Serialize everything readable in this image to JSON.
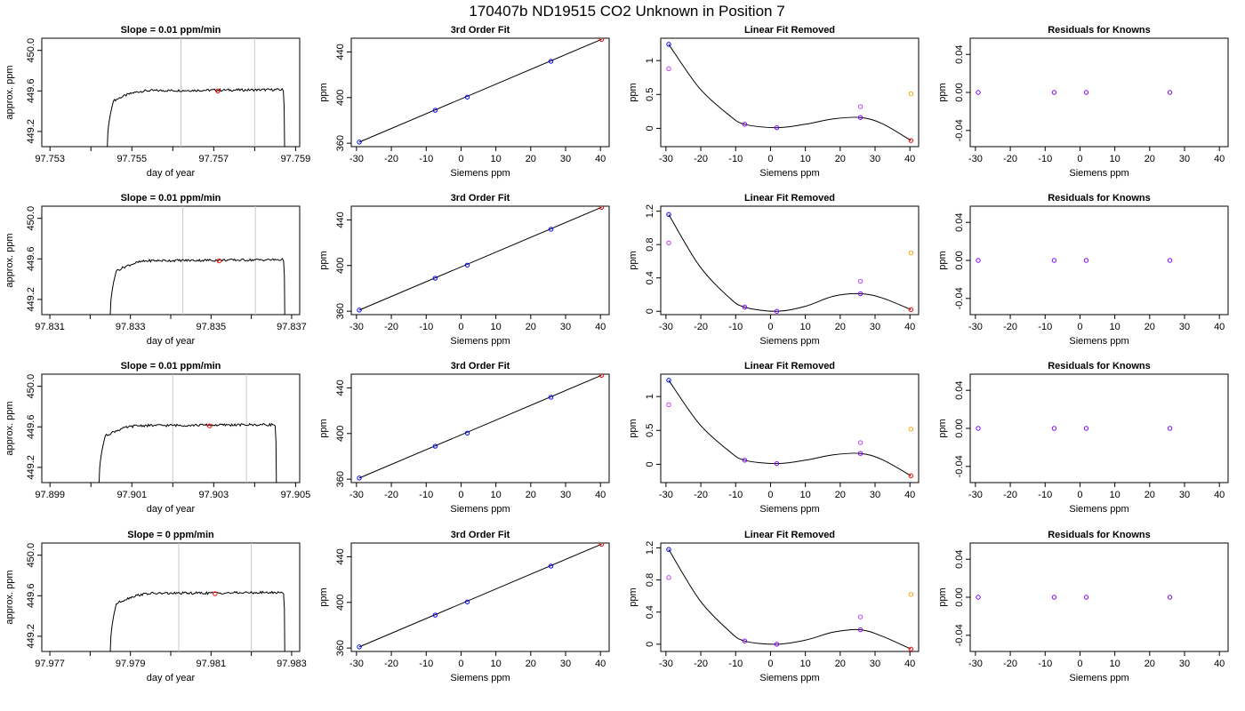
{
  "page": {
    "title": "170407b     ND19515   CO2 Unknown in Position  7"
  },
  "colors": {
    "trace": "#000000",
    "window_line": "#c8c8c8",
    "marker_red": "#ff0000",
    "point_blue": "#0000ff",
    "point_magenta": "#c040ff",
    "point_purple": "#8000ff",
    "point_orange": "#ffa500"
  },
  "chart_data": [
    {
      "type": "line",
      "title": "Slope =  0.01  ppm/min",
      "xlabel": "day of year",
      "ylabel": "approx. ppm",
      "xlim": [
        97.7528,
        97.7591
      ],
      "ylim": [
        449.05,
        450.12
      ],
      "xticks": [
        97.753,
        97.754,
        97.755,
        97.756,
        97.757,
        97.758,
        97.759
      ],
      "xtick_labels": [
        "97.753",
        "97.755",
        "97.757",
        "97.759"
      ],
      "yticks": [
        449.2,
        449.6,
        450.0
      ],
      "ytick_labels": [
        "449.2",
        "449.6",
        "450.0"
      ],
      "trace": {
        "x_start": 97.7544,
        "x_end": 97.7587,
        "level": 449.6,
        "drop": 449.05
      },
      "window_lines": [
        97.7562,
        97.758
      ],
      "marker": {
        "x": 97.7571,
        "y": 449.6
      }
    },
    {
      "type": "line",
      "title": "3rd Order Fit",
      "xlabel": "Siemens ppm",
      "ylabel": "ppm",
      "xlim": [
        -31.5,
        42.5
      ],
      "ylim": [
        357,
        452
      ],
      "xticks": [
        -30,
        -20,
        -10,
        0,
        10,
        20,
        30,
        40
      ],
      "yticks": [
        360,
        400,
        440
      ],
      "fit_line": [
        [
          -29.2,
          361.0
        ],
        [
          40.3,
          451.0
        ]
      ],
      "points": [
        {
          "x": -29.2,
          "y": 361.0,
          "color": "blue"
        },
        {
          "x": -7.4,
          "y": 388.9,
          "color": "blue"
        },
        {
          "x": 1.8,
          "y": 400.4,
          "color": "blue"
        },
        {
          "x": 25.8,
          "y": 431.8,
          "color": "blue"
        },
        {
          "x": 40.3,
          "y": 451.0,
          "color": "red"
        }
      ]
    },
    {
      "type": "line",
      "title": "Linear Fit Removed",
      "xlabel": "Siemens ppm",
      "ylabel": "ppm",
      "xlim": [
        -31.5,
        42.5
      ],
      "ylim": [
        -0.27,
        1.33
      ],
      "xticks": [
        -30,
        -20,
        -10,
        0,
        10,
        20,
        30,
        40
      ],
      "yticks": [
        0.0,
        0.5,
        1.0
      ],
      "curve": [
        [
          -29.2,
          1.24
        ],
        [
          -20.5,
          0.6
        ],
        [
          -12,
          0.2
        ],
        [
          -7.4,
          0.06
        ],
        [
          1.8,
          0.01
        ],
        [
          10,
          0.06
        ],
        [
          18,
          0.14
        ],
        [
          25.8,
          0.16
        ],
        [
          32,
          0.07
        ],
        [
          40.3,
          -0.18
        ]
      ],
      "points": [
        {
          "x": -29.2,
          "y": 1.24,
          "color": "blue"
        },
        {
          "x": -29.2,
          "y": 0.88,
          "color": "magenta"
        },
        {
          "x": -7.4,
          "y": 0.06,
          "color": "purple"
        },
        {
          "x": 1.8,
          "y": 0.01,
          "color": "purple"
        },
        {
          "x": 25.8,
          "y": 0.16,
          "color": "purple"
        },
        {
          "x": 25.8,
          "y": 0.32,
          "color": "magenta"
        },
        {
          "x": 40.3,
          "y": 0.51,
          "color": "orange"
        },
        {
          "x": 40.3,
          "y": -0.18,
          "color": "red"
        }
      ]
    },
    {
      "type": "scatter",
      "title": "Residuals for Knowns",
      "xlabel": "Siemens ppm",
      "ylabel": "ppm",
      "xlim": [
        -31.5,
        42.5
      ],
      "ylim": [
        -0.057,
        0.057
      ],
      "xticks": [
        -30,
        -20,
        -10,
        0,
        10,
        20,
        30,
        40
      ],
      "yticks": [
        -0.04,
        0.0,
        0.04
      ],
      "ytick_labels": [
        "-0.04",
        "0.00",
        "0.04"
      ],
      "points": [
        {
          "x": -29.2,
          "y": 0
        },
        {
          "x": -7.4,
          "y": 0
        },
        {
          "x": 1.8,
          "y": 0
        },
        {
          "x": 25.8,
          "y": 0
        }
      ]
    },
    {
      "type": "line",
      "title": "Slope =  0.01  ppm/min",
      "xlabel": "day of year",
      "ylabel": "approx. ppm",
      "xlim": [
        97.8308,
        97.8372
      ],
      "ylim": [
        449.05,
        450.12
      ],
      "xticks": [
        97.831,
        97.832,
        97.833,
        97.834,
        97.835,
        97.836,
        97.837
      ],
      "xtick_labels": [
        "97.831",
        "97.833",
        "97.835",
        "97.837"
      ],
      "yticks": [
        449.2,
        449.6,
        450.0
      ],
      "ytick_labels": [
        "449.2",
        "449.6",
        "450.0"
      ],
      "trace": {
        "x_start": 97.8325,
        "x_end": 97.8368,
        "level": 449.58,
        "drop": 449.05
      },
      "window_lines": [
        97.8343,
        97.8361
      ],
      "marker": {
        "x": 97.8352,
        "y": 449.58
      }
    },
    {
      "type": "line",
      "title": "3rd Order Fit",
      "xlabel": "Siemens ppm",
      "ylabel": "ppm",
      "xlim": [
        -31.5,
        42.5
      ],
      "ylim": [
        357,
        452
      ],
      "xticks": [
        -30,
        -20,
        -10,
        0,
        10,
        20,
        30,
        40
      ],
      "yticks": [
        360,
        400,
        440
      ],
      "fit_line": [
        [
          -29.2,
          361.0
        ],
        [
          40.3,
          451.0
        ]
      ],
      "points": [
        {
          "x": -29.2,
          "y": 361.0,
          "color": "blue"
        },
        {
          "x": -7.4,
          "y": 388.9,
          "color": "blue"
        },
        {
          "x": 1.8,
          "y": 400.4,
          "color": "blue"
        },
        {
          "x": 25.8,
          "y": 431.8,
          "color": "blue"
        },
        {
          "x": 40.3,
          "y": 451.0,
          "color": "red"
        }
      ]
    },
    {
      "type": "line",
      "title": "Linear Fit Removed",
      "xlabel": "Siemens ppm",
      "ylabel": "ppm",
      "xlim": [
        -31.5,
        42.5
      ],
      "ylim": [
        -0.04,
        1.26
      ],
      "xticks": [
        -30,
        -20,
        -10,
        0,
        10,
        20,
        30,
        40
      ],
      "yticks": [
        0.0,
        0.4,
        0.8,
        1.2
      ],
      "curve": [
        [
          -29.2,
          1.16
        ],
        [
          -20.5,
          0.55
        ],
        [
          -12,
          0.17
        ],
        [
          -7.4,
          0.05
        ],
        [
          1.8,
          0.0
        ],
        [
          10,
          0.06
        ],
        [
          18,
          0.18
        ],
        [
          25.8,
          0.21
        ],
        [
          32,
          0.16
        ],
        [
          40.3,
          0.02
        ]
      ],
      "points": [
        {
          "x": -29.2,
          "y": 1.16,
          "color": "blue"
        },
        {
          "x": -29.2,
          "y": 0.82,
          "color": "magenta"
        },
        {
          "x": -7.4,
          "y": 0.05,
          "color": "purple"
        },
        {
          "x": 1.8,
          "y": 0.0,
          "color": "purple"
        },
        {
          "x": 25.8,
          "y": 0.21,
          "color": "purple"
        },
        {
          "x": 25.8,
          "y": 0.36,
          "color": "magenta"
        },
        {
          "x": 40.3,
          "y": 0.7,
          "color": "orange"
        },
        {
          "x": 40.3,
          "y": 0.02,
          "color": "red"
        }
      ]
    },
    {
      "type": "scatter",
      "title": "Residuals for Knowns",
      "xlabel": "Siemens ppm",
      "ylabel": "ppm",
      "xlim": [
        -31.5,
        42.5
      ],
      "ylim": [
        -0.057,
        0.057
      ],
      "xticks": [
        -30,
        -20,
        -10,
        0,
        10,
        20,
        30,
        40
      ],
      "yticks": [
        -0.04,
        0.0,
        0.04
      ],
      "ytick_labels": [
        "-0.04",
        "0.00",
        "0.04"
      ],
      "points": [
        {
          "x": -29.2,
          "y": 0
        },
        {
          "x": -7.4,
          "y": 0
        },
        {
          "x": 1.8,
          "y": 0
        },
        {
          "x": 25.8,
          "y": 0
        }
      ]
    },
    {
      "type": "line",
      "title": "Slope =  0.01  ppm/min",
      "xlabel": "day of year",
      "ylabel": "approx. ppm",
      "xlim": [
        97.8988,
        97.9051
      ],
      "ylim": [
        449.05,
        450.12
      ],
      "xticks": [
        97.899,
        97.9,
        97.901,
        97.902,
        97.903,
        97.904,
        97.905
      ],
      "xtick_labels": [
        "97.899",
        "97.901",
        "97.903",
        "97.905"
      ],
      "yticks": [
        449.2,
        449.6,
        450.0
      ],
      "ytick_labels": [
        "449.2",
        "449.6",
        "450.0"
      ],
      "trace": {
        "x_start": 97.9002,
        "x_end": 97.9045,
        "level": 449.61,
        "drop": 449.05
      },
      "window_lines": [
        97.902,
        97.9038
      ],
      "marker": {
        "x": 97.9029,
        "y": 449.61
      }
    },
    {
      "type": "line",
      "title": "3rd Order Fit",
      "xlabel": "Siemens ppm",
      "ylabel": "ppm",
      "xlim": [
        -31.5,
        42.5
      ],
      "ylim": [
        357,
        452
      ],
      "xticks": [
        -30,
        -20,
        -10,
        0,
        10,
        20,
        30,
        40
      ],
      "yticks": [
        360,
        400,
        440
      ],
      "fit_line": [
        [
          -29.2,
          361.0
        ],
        [
          40.3,
          451.0
        ]
      ],
      "points": [
        {
          "x": -29.2,
          "y": 361.0,
          "color": "blue"
        },
        {
          "x": -7.4,
          "y": 388.9,
          "color": "blue"
        },
        {
          "x": 1.8,
          "y": 400.4,
          "color": "blue"
        },
        {
          "x": 25.8,
          "y": 431.8,
          "color": "blue"
        },
        {
          "x": 40.3,
          "y": 451.0,
          "color": "red"
        }
      ]
    },
    {
      "type": "line",
      "title": "Linear Fit Removed",
      "xlabel": "Siemens ppm",
      "ylabel": "ppm",
      "xlim": [
        -31.5,
        42.5
      ],
      "ylim": [
        -0.27,
        1.33
      ],
      "xticks": [
        -30,
        -20,
        -10,
        0,
        10,
        20,
        30,
        40
      ],
      "yticks": [
        0.0,
        0.5,
        1.0
      ],
      "curve": [
        [
          -29.2,
          1.24
        ],
        [
          -20.5,
          0.6
        ],
        [
          -12,
          0.2
        ],
        [
          -7.4,
          0.06
        ],
        [
          1.8,
          0.01
        ],
        [
          10,
          0.06
        ],
        [
          18,
          0.14
        ],
        [
          25.8,
          0.16
        ],
        [
          32,
          0.07
        ],
        [
          40.3,
          -0.17
        ]
      ],
      "points": [
        {
          "x": -29.2,
          "y": 1.24,
          "color": "blue"
        },
        {
          "x": -29.2,
          "y": 0.88,
          "color": "magenta"
        },
        {
          "x": -7.4,
          "y": 0.06,
          "color": "purple"
        },
        {
          "x": 1.8,
          "y": 0.01,
          "color": "purple"
        },
        {
          "x": 25.8,
          "y": 0.16,
          "color": "purple"
        },
        {
          "x": 25.8,
          "y": 0.32,
          "color": "magenta"
        },
        {
          "x": 40.3,
          "y": 0.52,
          "color": "orange"
        },
        {
          "x": 40.3,
          "y": -0.17,
          "color": "red"
        }
      ]
    },
    {
      "type": "scatter",
      "title": "Residuals for Knowns",
      "xlabel": "Siemens ppm",
      "ylabel": "ppm",
      "xlim": [
        -31.5,
        42.5
      ],
      "ylim": [
        -0.057,
        0.057
      ],
      "xticks": [
        -30,
        -20,
        -10,
        0,
        10,
        20,
        30,
        40
      ],
      "yticks": [
        -0.04,
        0.0,
        0.04
      ],
      "ytick_labels": [
        "-0.04",
        "0.00",
        "0.04"
      ],
      "points": [
        {
          "x": -29.2,
          "y": 0
        },
        {
          "x": -7.4,
          "y": 0
        },
        {
          "x": 1.8,
          "y": 0
        },
        {
          "x": 25.8,
          "y": 0
        }
      ]
    },
    {
      "type": "line",
      "title": "Slope =  0  ppm/min",
      "xlabel": "day of year",
      "ylabel": "approx. ppm",
      "xlim": [
        97.9768,
        97.9832
      ],
      "ylim": [
        449.05,
        450.12
      ],
      "xticks": [
        97.977,
        97.978,
        97.979,
        97.98,
        97.981,
        97.982,
        97.983
      ],
      "xtick_labels": [
        "97.977",
        "97.979",
        "97.981",
        "97.983"
      ],
      "yticks": [
        449.2,
        449.6,
        450.0
      ],
      "ytick_labels": [
        "449.2",
        "449.6",
        "450.0"
      ],
      "trace": {
        "x_start": 97.9785,
        "x_end": 97.9828,
        "level": 449.62,
        "drop": 449.05
      },
      "window_lines": [
        97.9802,
        97.982
      ],
      "marker": {
        "x": 97.9811,
        "y": 449.62
      }
    },
    {
      "type": "line",
      "title": "3rd Order Fit",
      "xlabel": "Siemens ppm",
      "ylabel": "ppm",
      "xlim": [
        -31.5,
        42.5
      ],
      "ylim": [
        357,
        452
      ],
      "xticks": [
        -30,
        -20,
        -10,
        0,
        10,
        20,
        30,
        40
      ],
      "yticks": [
        360,
        400,
        440
      ],
      "fit_line": [
        [
          -29.2,
          361.0
        ],
        [
          40.3,
          451.0
        ]
      ],
      "points": [
        {
          "x": -29.2,
          "y": 361.0,
          "color": "blue"
        },
        {
          "x": -7.4,
          "y": 388.9,
          "color": "blue"
        },
        {
          "x": 1.8,
          "y": 400.4,
          "color": "blue"
        },
        {
          "x": 25.8,
          "y": 431.8,
          "color": "blue"
        },
        {
          "x": 40.3,
          "y": 451.0,
          "color": "red"
        }
      ]
    },
    {
      "type": "line",
      "title": "Linear Fit Removed",
      "xlabel": "Siemens ppm",
      "ylabel": "ppm",
      "xlim": [
        -31.5,
        42.5
      ],
      "ylim": [
        -0.09,
        1.26
      ],
      "xticks": [
        -30,
        -20,
        -10,
        0,
        10,
        20,
        30,
        40
      ],
      "yticks": [
        0.0,
        0.4,
        0.8,
        1.2
      ],
      "curve": [
        [
          -29.2,
          1.18
        ],
        [
          -20.5,
          0.56
        ],
        [
          -12,
          0.17
        ],
        [
          -7.4,
          0.04
        ],
        [
          1.8,
          0.0
        ],
        [
          10,
          0.05
        ],
        [
          18,
          0.15
        ],
        [
          25.8,
          0.18
        ],
        [
          32,
          0.1
        ],
        [
          40.3,
          -0.06
        ]
      ],
      "points": [
        {
          "x": -29.2,
          "y": 1.18,
          "color": "blue"
        },
        {
          "x": -29.2,
          "y": 0.83,
          "color": "magenta"
        },
        {
          "x": -7.4,
          "y": 0.04,
          "color": "purple"
        },
        {
          "x": 1.8,
          "y": 0.0,
          "color": "purple"
        },
        {
          "x": 25.8,
          "y": 0.18,
          "color": "purple"
        },
        {
          "x": 25.8,
          "y": 0.34,
          "color": "magenta"
        },
        {
          "x": 40.3,
          "y": 0.62,
          "color": "orange"
        },
        {
          "x": 40.3,
          "y": -0.06,
          "color": "red"
        }
      ]
    },
    {
      "type": "scatter",
      "title": "Residuals for Knowns",
      "xlabel": "Siemens ppm",
      "ylabel": "ppm",
      "xlim": [
        -31.5,
        42.5
      ],
      "ylim": [
        -0.057,
        0.057
      ],
      "xticks": [
        -30,
        -20,
        -10,
        0,
        10,
        20,
        30,
        40
      ],
      "yticks": [
        -0.04,
        0.0,
        0.04
      ],
      "ytick_labels": [
        "-0.04",
        "0.00",
        "0.04"
      ],
      "points": [
        {
          "x": -29.2,
          "y": 0
        },
        {
          "x": -7.4,
          "y": 0
        },
        {
          "x": 1.8,
          "y": 0
        },
        {
          "x": 25.8,
          "y": 0
        }
      ]
    }
  ]
}
